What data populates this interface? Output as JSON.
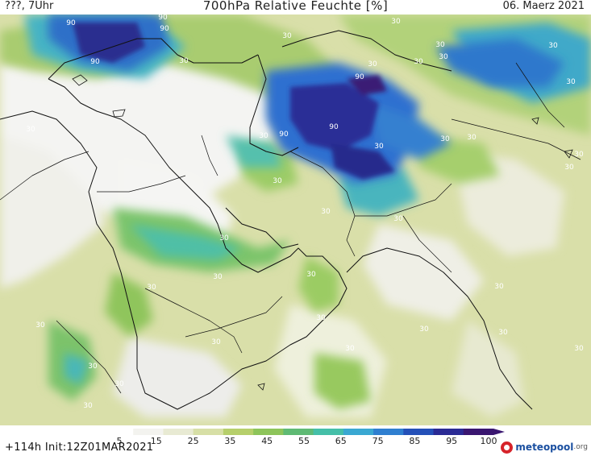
{
  "header": {
    "left": "???, 7Uhr",
    "title": "700hPa Relative Feuchte [%]",
    "date": "06. Maerz 2021"
  },
  "footer": {
    "run_info": "+114h  Init:12Z01MAR2021",
    "brand_name": "meteopool",
    "brand_suffix": ".org"
  },
  "legend": {
    "ticks": [
      "5",
      "15",
      "25",
      "35",
      "45",
      "55",
      "65",
      "75",
      "85",
      "95",
      "100"
    ],
    "colors": [
      "#ffffff",
      "#f3f3ef",
      "#e8ead3",
      "#d7dfa6",
      "#b6cf6b",
      "#8dc45a",
      "#5fba74",
      "#45bfa8",
      "#3aa8d2",
      "#2f7fd0",
      "#2450b8",
      "#2a2a94",
      "#3a1670"
    ]
  },
  "map_labels": [
    {
      "text": "90"
    },
    {
      "text": "90"
    },
    {
      "text": "90"
    },
    {
      "text": "90"
    },
    {
      "text": "90"
    },
    {
      "text": "90"
    },
    {
      "text": "90"
    },
    {
      "text": "30"
    },
    {
      "text": "30"
    },
    {
      "text": "30"
    },
    {
      "text": "30"
    },
    {
      "text": "30"
    },
    {
      "text": "30"
    },
    {
      "text": "30"
    },
    {
      "text": "30"
    },
    {
      "text": "30"
    },
    {
      "text": "30"
    },
    {
      "text": "30"
    },
    {
      "text": "30"
    },
    {
      "text": "30"
    },
    {
      "text": "30"
    },
    {
      "text": "30"
    },
    {
      "text": "30"
    },
    {
      "text": "30"
    },
    {
      "text": "30"
    },
    {
      "text": "30"
    },
    {
      "text": "30"
    },
    {
      "text": "30"
    },
    {
      "text": "30"
    },
    {
      "text": "30"
    },
    {
      "text": "30"
    },
    {
      "text": "30"
    },
    {
      "text": "30"
    },
    {
      "text": "30"
    },
    {
      "text": "30"
    },
    {
      "text": "30"
    },
    {
      "text": "30"
    },
    {
      "text": "30"
    },
    {
      "text": "30"
    },
    {
      "text": "30"
    },
    {
      "text": "30"
    }
  ]
}
